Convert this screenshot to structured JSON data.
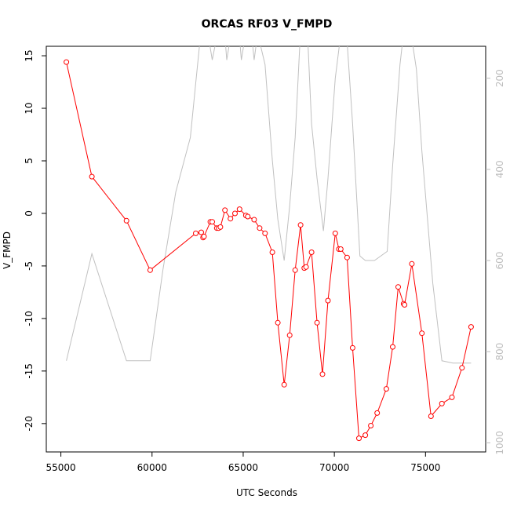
{
  "chart_data": {
    "type": "line",
    "title": "ORCAS RF03 V_FMPD",
    "xlabel": "UTC Seconds",
    "ylabel": "V_FMPD",
    "xlim": [
      54200,
      78300
    ],
    "ylim": [
      -22.7,
      15.9
    ],
    "x_ticks": [
      55000,
      60000,
      65000,
      70000,
      75000
    ],
    "y_ticks": [
      -20,
      -15,
      -10,
      -5,
      0,
      5,
      10,
      15
    ],
    "y2_ticks": [
      200,
      400,
      600,
      800,
      1000
    ],
    "y2lim": [
      1020,
      130
    ],
    "grid": false,
    "series": [
      {
        "color": "#ff0000",
        "marker": "open-circle",
        "x": [
          55300,
          56700,
          58600,
          59900,
          62400,
          62700,
          62800,
          62850,
          63200,
          63300,
          63550,
          63650,
          63750,
          64000,
          64300,
          64550,
          64800,
          65150,
          65250,
          65600,
          65900,
          66200,
          66600,
          66900,
          67250,
          67550,
          67850,
          68150,
          68350,
          68450,
          68750,
          69050,
          69350,
          69650,
          70050,
          70250,
          70350,
          70700,
          71000,
          71350,
          71700,
          72000,
          72350,
          72850,
          73200,
          73500,
          73800,
          73850,
          74250,
          74800,
          75300,
          75900,
          76450,
          77000,
          77500
        ],
        "y": [
          14.4,
          3.5,
          -0.7,
          -5.4,
          -1.9,
          -1.8,
          -2.3,
          -2.2,
          -0.8,
          -0.8,
          -1.4,
          -1.4,
          -1.3,
          0.3,
          -0.5,
          0.0,
          0.4,
          -0.2,
          -0.3,
          -0.6,
          -1.4,
          -1.9,
          -3.7,
          -10.4,
          -16.3,
          -11.6,
          -5.4,
          -1.1,
          -5.2,
          -5.1,
          -3.7,
          -10.4,
          -15.3,
          -8.3,
          -1.9,
          -3.4,
          -3.4,
          -4.2,
          -12.8,
          -21.4,
          -21.1,
          -20.2,
          -19.0,
          -16.7,
          -12.7,
          -7.0,
          -8.6,
          -8.7,
          -4.8,
          -11.4,
          -19.3,
          -18.1,
          -17.5,
          -14.7,
          -10.8
        ]
      },
      {
        "color": "#c0c0c0",
        "axis": "right",
        "x": [
          55300,
          56700,
          58600,
          59900,
          60600,
          61300,
          62100,
          62400,
          62700,
          62900,
          63000,
          63100,
          63300,
          63500,
          63700,
          63900,
          64000,
          64100,
          64300,
          64500,
          64700,
          64800,
          64900,
          65100,
          65300,
          65500,
          65600,
          65700,
          65900,
          66200,
          66600,
          66900,
          67250,
          67550,
          67850,
          68100,
          68350,
          68550,
          68750,
          69050,
          69400,
          69650,
          70050,
          70300,
          70550,
          70700,
          71000,
          71400,
          71700,
          72200,
          72900,
          73200,
          73600,
          73800,
          74000,
          74200,
          74500,
          74800,
          75400,
          75900,
          76500,
          77000,
          77500
        ],
        "y": [
          820,
          585,
          820,
          820,
          620,
          450,
          330,
          210,
          90,
          80,
          80,
          110,
          160,
          120,
          80,
          90,
          110,
          160,
          110,
          80,
          90,
          110,
          160,
          110,
          90,
          120,
          160,
          130,
          120,
          170,
          380,
          510,
          600,
          480,
          330,
          130,
          80,
          120,
          300,
          420,
          535,
          420,
          200,
          120,
          80,
          120,
          300,
          590,
          600,
          600,
          580,
          390,
          170,
          100,
          80,
          100,
          180,
          360,
          650,
          820,
          825,
          825,
          825
        ]
      }
    ]
  }
}
